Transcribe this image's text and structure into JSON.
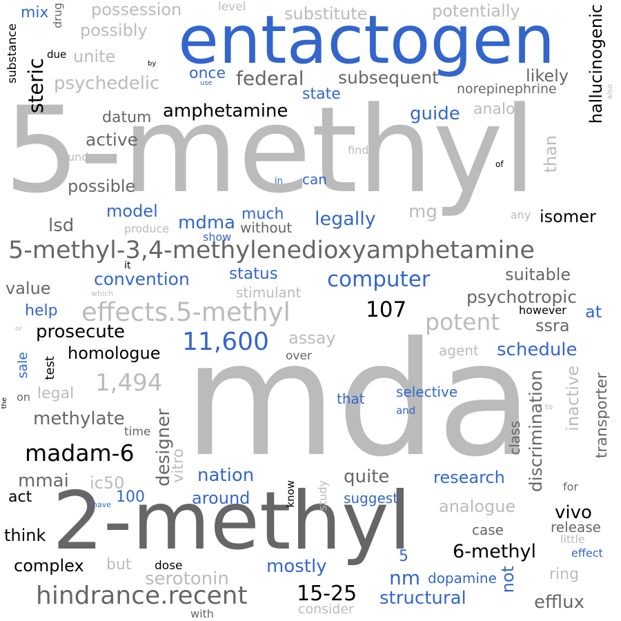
{
  "colors": {
    "background": "#ffffff",
    "blue": "#3366cc",
    "dark_gray": "#666666",
    "light_gray": "#bbbbbb",
    "black": "#000000"
  },
  "words": [
    {
      "id": "5-methyl",
      "text": "5-methyl",
      "weight": 100
    },
    {
      "id": "mda",
      "text": "mda",
      "weight": 98
    },
    {
      "id": "2-methyl",
      "text": "2-methyl",
      "weight": 80
    },
    {
      "id": "entactogen",
      "text": "entactogen",
      "weight": 70
    },
    {
      "id": "5-methyl-3-4-methylenedioxyamphetamine",
      "text": "5-methyl-3,4-methylenedioxyamphetamine",
      "weight": 40
    },
    {
      "id": "hindrance-recent",
      "text": "hindrance.recent",
      "weight": 38
    },
    {
      "id": "effects-5-methyl",
      "text": "effects.5-methyl",
      "weight": 37
    },
    {
      "id": "11-600",
      "text": "11,600",
      "weight": 36
    },
    {
      "id": "1-494",
      "text": "1,494",
      "weight": 34
    },
    {
      "id": "madam-6",
      "text": "madam-6",
      "weight": 33
    },
    {
      "id": "potent",
      "text": "potent",
      "weight": 33
    },
    {
      "id": "computer",
      "text": "computer",
      "weight": 31
    },
    {
      "id": "107",
      "text": "107",
      "weight": 31
    },
    {
      "id": "15-25",
      "text": "15-25",
      "weight": 30
    },
    {
      "id": "steric",
      "text": "steric",
      "weight": 29
    },
    {
      "id": "federal",
      "text": "federal",
      "weight": 28
    },
    {
      "id": "legally",
      "text": "legally",
      "weight": 27
    },
    {
      "id": "6-methyl",
      "text": "6-methyl",
      "weight": 27
    },
    {
      "id": "mdma",
      "text": "mdma",
      "weight": 26
    },
    {
      "id": "structural",
      "text": "structural",
      "weight": 26
    },
    {
      "id": "discrimination",
      "text": "discrimination",
      "weight": 26
    },
    {
      "id": "designer",
      "text": "designer",
      "weight": 26
    },
    {
      "id": "hallucinogenic",
      "text": "hallucinogenic",
      "weight": 24
    },
    {
      "id": "serotonin",
      "text": "serotonin",
      "weight": 24
    },
    {
      "id": "efflux",
      "text": "efflux",
      "weight": 26
    },
    {
      "id": "psychedelic",
      "text": "psychedelic",
      "weight": 26
    },
    {
      "id": "subsequent",
      "text": "subsequent",
      "weight": 25
    },
    {
      "id": "possession",
      "text": "possession",
      "weight": 24
    },
    {
      "id": "isomer",
      "text": "isomer",
      "weight": 24
    },
    {
      "id": "vivo",
      "text": "vivo",
      "weight": 24
    },
    {
      "id": "quite",
      "text": "quite",
      "weight": 24
    },
    {
      "id": "possibly",
      "text": "possibly",
      "weight": 23
    },
    {
      "id": "unite",
      "text": "unite",
      "weight": 23
    },
    {
      "id": "nm",
      "text": "nm",
      "weight": 23
    },
    {
      "id": "mmai",
      "text": "mmai",
      "weight": 23
    },
    {
      "id": "substitute",
      "text": "substitute",
      "weight": 22
    },
    {
      "id": "potentially",
      "text": "potentially",
      "weight": 22
    },
    {
      "id": "inactive",
      "text": "inactive",
      "weight": 22
    },
    {
      "id": "lsd",
      "text": "lsd",
      "weight": 22
    },
    {
      "id": "amphetamine",
      "text": "amphetamine",
      "weight": 22
    },
    {
      "id": "prosecute",
      "text": "prosecute",
      "weight": 22
    },
    {
      "id": "methylate",
      "text": "methylate",
      "weight": 22
    },
    {
      "id": "vitro",
      "text": "vitro",
      "weight": 22
    },
    {
      "id": "mostly",
      "text": "mostly",
      "weight": 22
    },
    {
      "id": "nation",
      "text": "nation",
      "weight": 22
    },
    {
      "id": "schedule",
      "text": "schedule",
      "weight": 22
    },
    {
      "id": "convention",
      "text": "convention",
      "weight": 22
    },
    {
      "id": "psychotropic",
      "text": "psychotropic",
      "weight": 22
    },
    {
      "id": "assay",
      "text": "assay",
      "weight": 22
    },
    {
      "id": "ic50",
      "text": "ic50",
      "weight": 22
    },
    {
      "id": "homologue",
      "text": "homologue",
      "weight": 21
    },
    {
      "id": "suitable",
      "text": "suitable",
      "weight": 21
    },
    {
      "id": "than",
      "text": "than",
      "weight": 21
    },
    {
      "id": "transporter",
      "text": "transporter",
      "weight": 21
    },
    {
      "id": "analogue",
      "text": "analogue",
      "weight": 21
    },
    {
      "id": "research",
      "text": "research",
      "weight": 21
    },
    {
      "id": "around",
      "text": "around",
      "weight": 21
    },
    {
      "id": "complex",
      "text": "complex",
      "weight": 21
    },
    {
      "id": "think",
      "text": "think",
      "weight": 21
    },
    {
      "id": "not",
      "text": "not",
      "weight": 21
    },
    {
      "id": "possible",
      "text": "possible",
      "weight": 20
    },
    {
      "id": "active",
      "text": "active",
      "weight": 20
    },
    {
      "id": "model",
      "text": "model",
      "weight": 20
    },
    {
      "id": "much",
      "text": "much",
      "weight": 20
    },
    {
      "id": "guide",
      "text": "guide",
      "weight": 20
    },
    {
      "id": "state",
      "text": "state",
      "weight": 20
    },
    {
      "id": "likely",
      "text": "likely",
      "weight": 20
    },
    {
      "id": "mg",
      "text": "mg",
      "weight": 20
    },
    {
      "id": "value",
      "text": "value",
      "weight": 20
    },
    {
      "id": "help",
      "text": "help",
      "weight": 20
    },
    {
      "id": "status",
      "text": "status",
      "weight": 20
    },
    {
      "id": "ssra",
      "text": "ssra",
      "weight": 20
    },
    {
      "id": "legal",
      "text": "legal",
      "weight": 20
    },
    {
      "id": "datum",
      "text": "datum",
      "weight": 19
    },
    {
      "id": "once",
      "text": "once",
      "weight": 19
    },
    {
      "id": "mix",
      "text": "mix",
      "weight": 19
    },
    {
      "id": "act",
      "text": "act",
      "weight": 19
    },
    {
      "id": "analog",
      "text": "analog",
      "weight": 19
    },
    {
      "id": "ring",
      "text": "ring",
      "weight": 19
    },
    {
      "id": "100",
      "text": "100",
      "weight": 19
    },
    {
      "id": "but",
      "text": "but",
      "weight": 19
    },
    {
      "id": "5-small",
      "text": "5",
      "weight": 19
    },
    {
      "id": "without",
      "text": "without",
      "weight": 18
    },
    {
      "id": "stimulant",
      "text": "stimulant",
      "weight": 18
    },
    {
      "id": "selective",
      "text": "selective",
      "weight": 18
    },
    {
      "id": "that",
      "text": "that",
      "weight": 18
    },
    {
      "id": "dopamine",
      "text": "dopamine",
      "weight": 18
    },
    {
      "id": "class",
      "text": "class",
      "weight": 18
    },
    {
      "id": "suggest",
      "text": "suggest",
      "weight": 18
    },
    {
      "id": "release",
      "text": "release",
      "weight": 18
    },
    {
      "id": "case",
      "text": "case",
      "weight": 18
    },
    {
      "id": "consider",
      "text": "consider",
      "weight": 18
    },
    {
      "id": "sale",
      "text": "sale",
      "weight": 18
    },
    {
      "id": "norepinephrine",
      "text": "norepinephrine",
      "weight": 18
    },
    {
      "id": "at",
      "text": "at",
      "weight": 20
    },
    {
      "id": "can",
      "text": "can",
      "weight": 19
    },
    {
      "id": "agent",
      "text": "agent",
      "weight": 18
    },
    {
      "id": "substance",
      "text": "substance",
      "weight": 17
    },
    {
      "id": "level",
      "text": "level",
      "weight": 17
    },
    {
      "id": "test",
      "text": "test",
      "weight": 17
    },
    {
      "id": "time",
      "text": "time",
      "weight": 17
    },
    {
      "id": "dose",
      "text": "dose",
      "weight": 17
    },
    {
      "id": "over",
      "text": "over",
      "weight": 17
    },
    {
      "id": "study",
      "text": "study",
      "weight": 17
    },
    {
      "id": "with",
      "text": "with",
      "weight": 17
    },
    {
      "id": "know",
      "text": "know",
      "weight": 17
    },
    {
      "id": "however",
      "text": "however",
      "weight": 16
    },
    {
      "id": "show",
      "text": "show",
      "weight": 16
    },
    {
      "id": "produce",
      "text": "produce",
      "weight": 16
    },
    {
      "id": "drug",
      "text": "drug",
      "weight": 16
    },
    {
      "id": "find",
      "text": "find",
      "weight": 16
    },
    {
      "id": "under",
      "text": "under",
      "weight": 16
    },
    {
      "id": "little",
      "text": "little",
      "weight": 16
    },
    {
      "id": "effect",
      "text": "effect",
      "weight": 16
    },
    {
      "id": "for",
      "text": "for",
      "weight": 16
    },
    {
      "id": "any",
      "text": "any",
      "weight": 16
    },
    {
      "id": "on",
      "text": "on",
      "weight": 16
    },
    {
      "id": "due",
      "text": "due",
      "weight": 15
    },
    {
      "id": "in",
      "text": "in",
      "weight": 15
    },
    {
      "id": "and",
      "text": "and",
      "weight": 15
    },
    {
      "id": "it",
      "text": "it",
      "weight": 14
    },
    {
      "id": "of",
      "text": "of",
      "weight": 14
    },
    {
      "id": "which",
      "text": "which",
      "weight": 14
    },
    {
      "id": "have",
      "text": "have",
      "weight": 14
    },
    {
      "id": "to",
      "text": "to",
      "weight": 13
    },
    {
      "id": "by",
      "text": "by",
      "weight": 13
    },
    {
      "id": "use",
      "text": "use",
      "weight": 13
    },
    {
      "id": "the",
      "text": "the",
      "weight": 13
    },
    {
      "id": "or",
      "text": "or",
      "weight": 13
    },
    {
      "id": "also",
      "text": "also",
      "weight": 13
    }
  ]
}
